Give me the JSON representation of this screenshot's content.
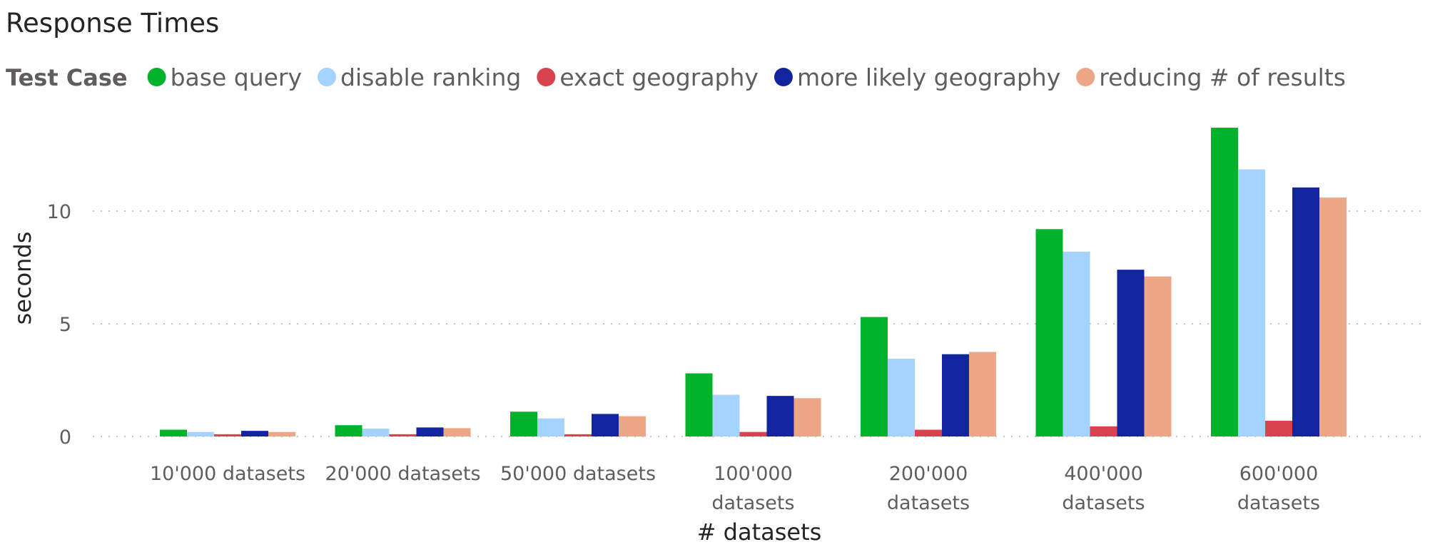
{
  "chart_data": {
    "type": "bar",
    "title": "Response Times",
    "legend_title": "Test Case",
    "legend_position": "top-left",
    "xlabel": "# datasets",
    "ylabel": "seconds",
    "ylim": [
      0,
      14
    ],
    "yticks": [
      0,
      5,
      10
    ],
    "grid": true,
    "categories": [
      [
        "10'000 datasets"
      ],
      [
        "20'000 datasets"
      ],
      [
        "50'000 datasets"
      ],
      [
        "100'000",
        "datasets"
      ],
      [
        "200'000",
        "datasets"
      ],
      [
        "400'000",
        "datasets"
      ],
      [
        "600'000",
        "datasets"
      ]
    ],
    "series": [
      {
        "name": "base query",
        "color": "#00b32b",
        "values": [
          0.3,
          0.5,
          1.1,
          2.8,
          5.3,
          9.2,
          13.7
        ]
      },
      {
        "name": "disable ranking",
        "color": "#a5d3ff",
        "values": [
          0.2,
          0.35,
          0.8,
          1.85,
          3.45,
          8.2,
          11.85
        ]
      },
      {
        "name": "exact geography",
        "color": "#d9434f",
        "values": [
          0.1,
          0.1,
          0.1,
          0.2,
          0.3,
          0.45,
          0.7
        ]
      },
      {
        "name": "more likely geography",
        "color": "#13249f",
        "values": [
          0.25,
          0.4,
          1.0,
          1.8,
          3.65,
          7.4,
          11.05
        ]
      },
      {
        "name": "reducing # of results",
        "color": "#eda787",
        "values": [
          0.2,
          0.37,
          0.9,
          1.7,
          3.75,
          7.1,
          10.6
        ]
      }
    ]
  }
}
